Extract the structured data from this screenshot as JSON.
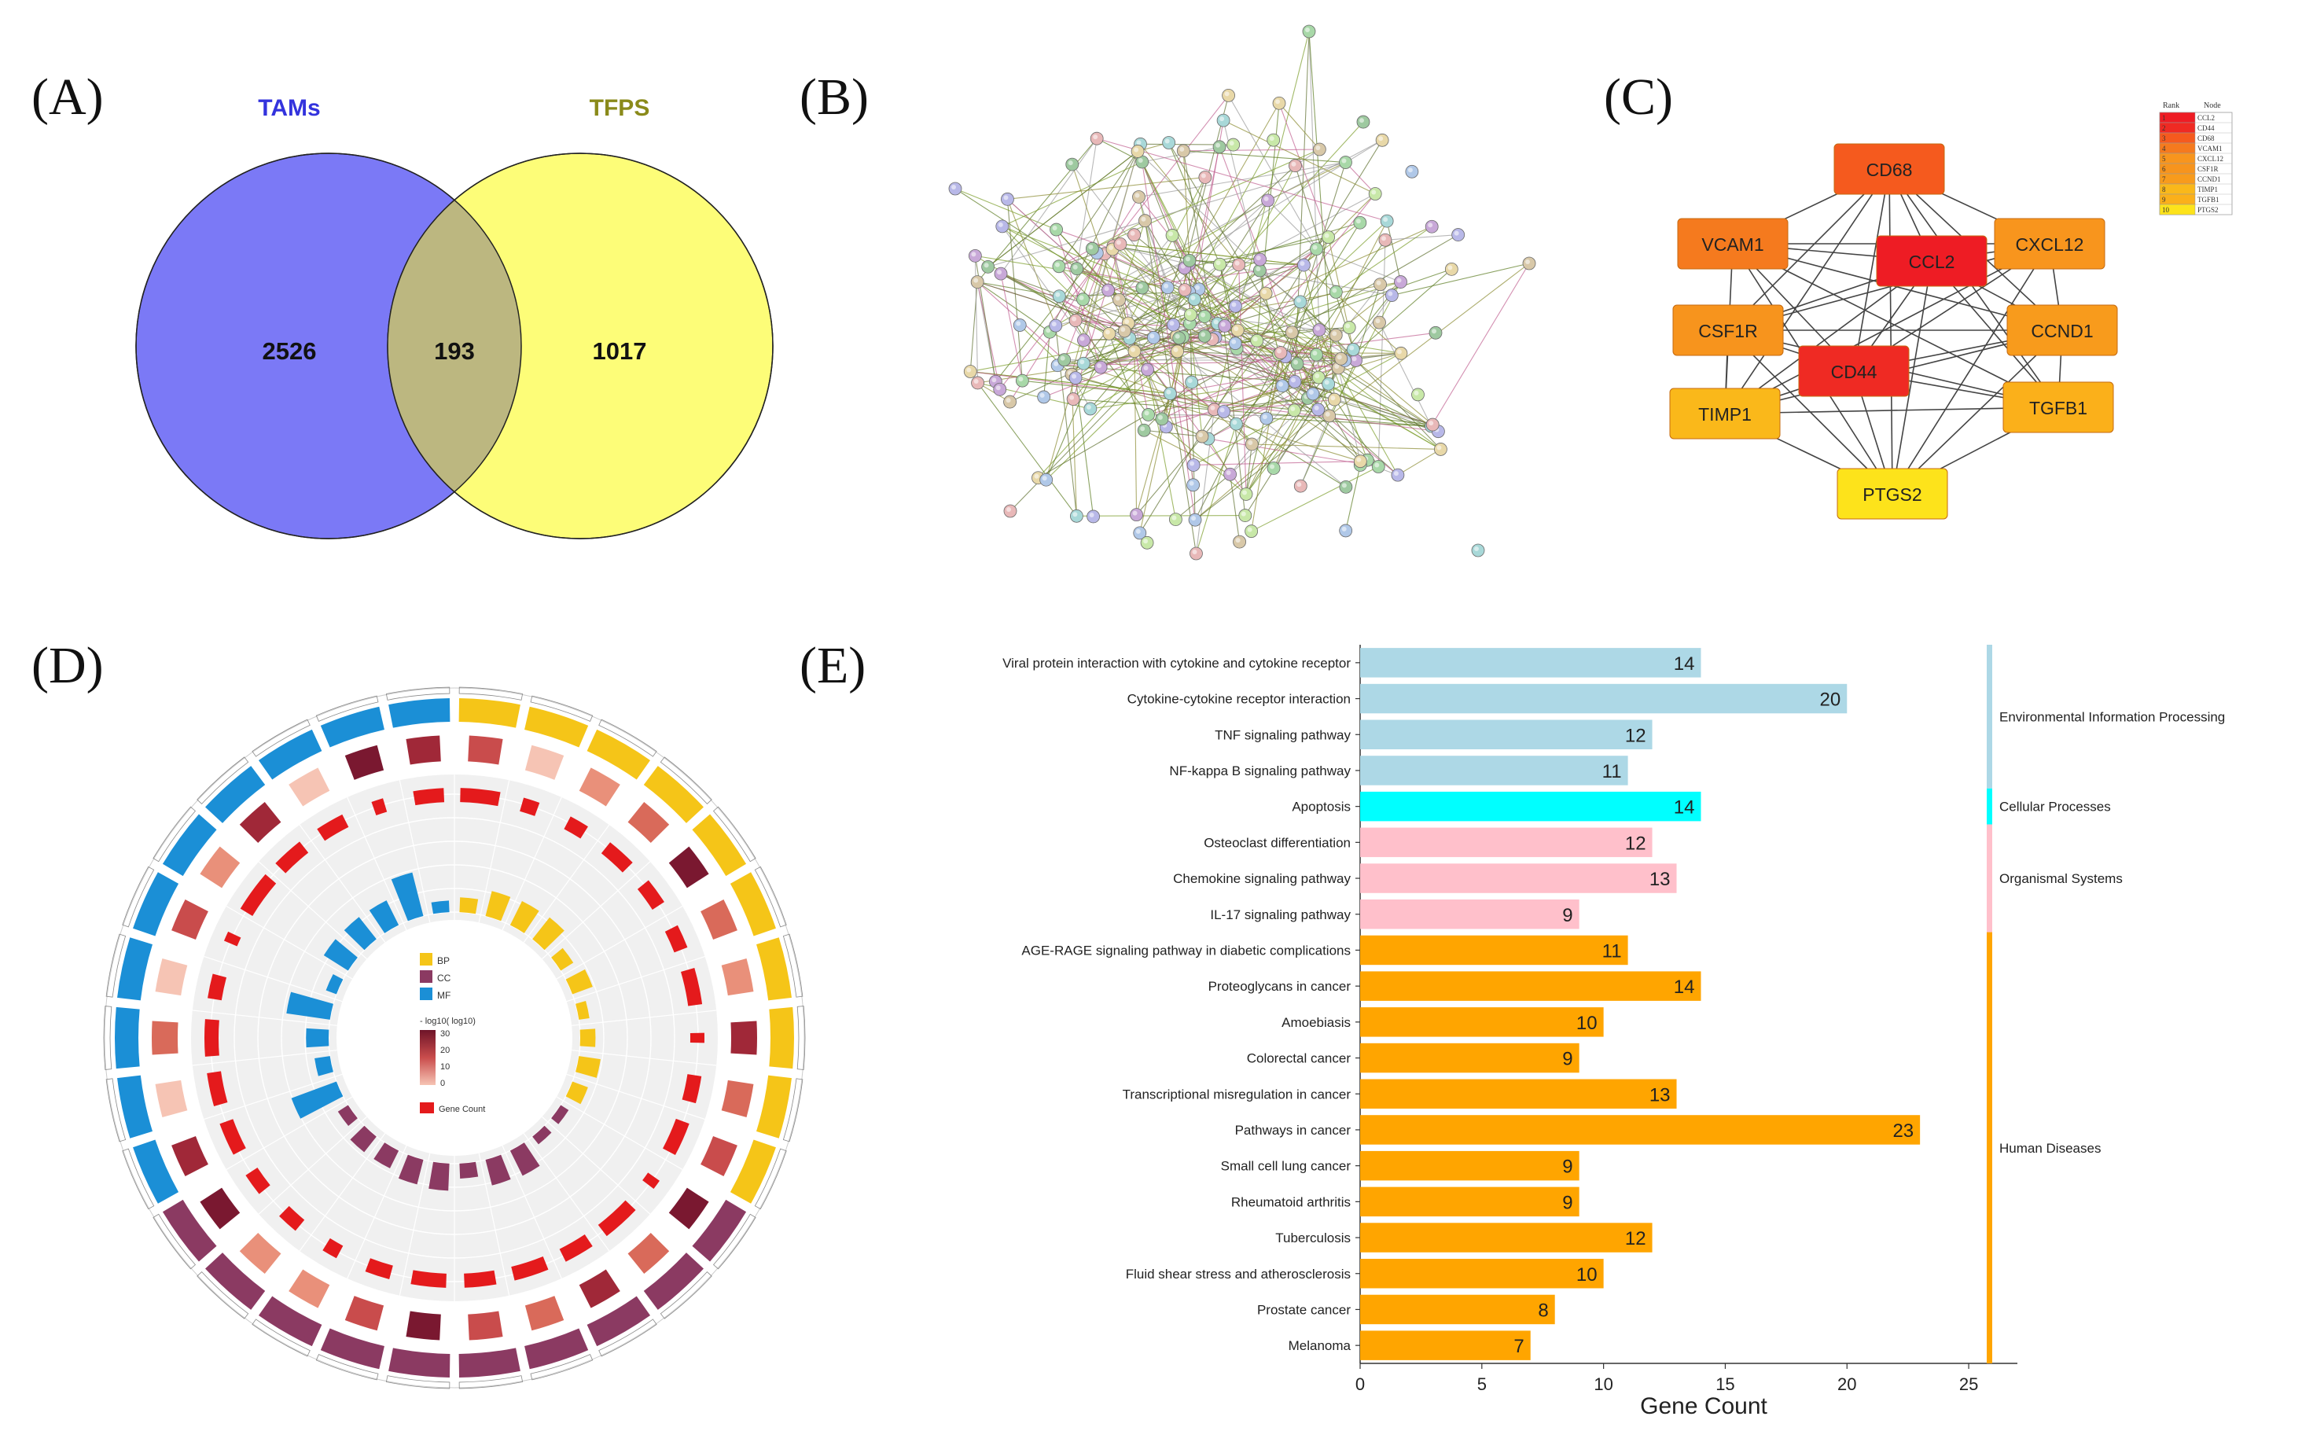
{
  "panels": {
    "a": "(A)",
    "b": "(B)",
    "c": "(C)",
    "d": "(D)",
    "e": "(E)"
  },
  "venn": {
    "left_label": "TAMs",
    "right_label": "TFPS",
    "left_only": "2526",
    "overlap": "193",
    "right_only": "1017",
    "colors": {
      "left": "#7b79f6",
      "right": "#fdfd78",
      "overlap": "#bcb780",
      "left_label": "#3333dd",
      "right_label": "#8a8a1a"
    }
  },
  "network": {
    "nodes": [
      "CD68",
      "VCAM1",
      "CCL2",
      "CXCL12",
      "CSF1R",
      "CCND1",
      "CD44",
      "TIMP1",
      "TGFB1",
      "PTGS2"
    ],
    "colors": {
      "CD68": "#f55a1e",
      "VCAM1": "#f57a1e",
      "CCL2": "#ee1c24",
      "CXCL12": "#f8951d",
      "CSF1R": "#f7941d",
      "CCND1": "#f89b1c",
      "CD44": "#ef2a23",
      "TIMP1": "#fab81a",
      "TGFB1": "#fbb01a",
      "PTGS2": "#fde31b"
    },
    "legend": {
      "col1": "Rank",
      "col2": "Node",
      "rows": [
        {
          "rank": "1",
          "node": "CCL2"
        },
        {
          "rank": "2",
          "node": "CD44"
        },
        {
          "rank": "3",
          "node": "CD68"
        },
        {
          "rank": "4",
          "node": "VCAM1"
        },
        {
          "rank": "5",
          "node": "CXCL12"
        },
        {
          "rank": "6",
          "node": "CSF1R"
        },
        {
          "rank": "7",
          "node": "CCND1"
        },
        {
          "rank": "8",
          "node": "TIMP1"
        },
        {
          "rank": "9",
          "node": "TGFB1"
        },
        {
          "rank": "10",
          "node": "PTGS2"
        }
      ]
    }
  },
  "circos": {
    "legend_bp": "BP",
    "legend_cc": "CC",
    "legend_mf": "MF",
    "legend_scale_title": "- log10( log10)",
    "legend_scale_ticks": [
      "30",
      "20",
      "10",
      "0"
    ],
    "legend_gene_count": "Gene Count",
    "colors": {
      "BP": "#f5c518",
      "CC": "#8b3a62",
      "MF": "#1b8fd6"
    }
  },
  "chart_data": {
    "type": "bar",
    "orientation": "horizontal",
    "title": "",
    "xlabel": "Gene Count",
    "ylabel": "",
    "xlim": [
      0,
      27
    ],
    "xticks": [
      0,
      5,
      10,
      15,
      20,
      25
    ],
    "categories": [
      "Viral protein interaction with cytokine and cytokine receptor",
      "Cytokine-cytokine receptor interaction",
      "TNF signaling pathway",
      "NF-kappa B signaling pathway",
      "Apoptosis",
      "Osteoclast differentiation",
      "Chemokine signaling pathway",
      "IL-17 signaling pathway",
      "AGE-RAGE signaling pathway in diabetic complications",
      "Proteoglycans in cancer",
      "Amoebiasis",
      "Colorectal cancer",
      "Transcriptional misregulation in cancer",
      "Pathways in cancer",
      "Small cell lung cancer",
      "Rheumatoid arthritis",
      "Tuberculosis",
      "Fluid shear stress and atherosclerosis",
      "Prostate cancer",
      "Melanoma"
    ],
    "values": [
      14,
      20,
      12,
      11,
      14,
      12,
      13,
      9,
      11,
      14,
      10,
      9,
      13,
      23,
      9,
      9,
      12,
      10,
      8,
      7
    ],
    "groups": [
      {
        "name": "Environmental Information Processing",
        "color": "#add8e6",
        "count": 4
      },
      {
        "name": "Cellular Processes",
        "color": "#00ffff",
        "count": 1
      },
      {
        "name": "Organismal Systems",
        "color": "#ffc0cb",
        "count": 3
      },
      {
        "name": "Human Diseases",
        "color": "#ffa500",
        "count": 12
      }
    ]
  }
}
